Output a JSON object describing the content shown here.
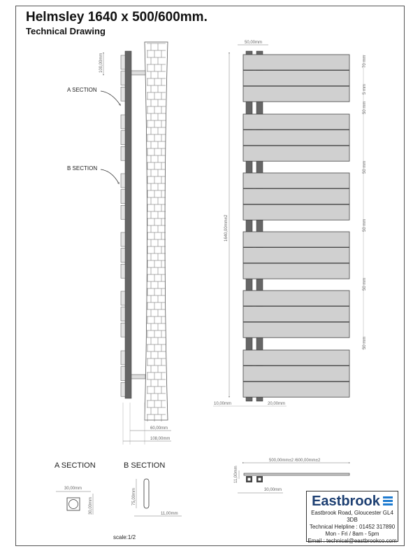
{
  "header": {
    "title": "Helmsley 1640 x 500/600mm.",
    "subtitle": "Technical Drawing"
  },
  "side_view": {
    "labels": {
      "a_section": "A SECTION",
      "b_section": "B SECTION",
      "top_offset": "100,00mm",
      "depth_inner": "60,00mm",
      "depth_outer": "108,00mm"
    }
  },
  "front_view": {
    "labels": {
      "column_span": "50,00mm",
      "height": "1640,00mm±2",
      "panel_height": "70 mm",
      "panel_gap": "5 mm",
      "group_gap_1": "50 mm",
      "group_gap_2": "50 mm",
      "group_gap_3": "50 mm",
      "group_gap_4": "50 mm",
      "group_gap_5": "50 mm",
      "group_gap_6": "50 mm",
      "left_offset": "10,00mm",
      "column_width": "20,00mm"
    },
    "panel_groups": 6,
    "panels_per_group": 3
  },
  "plan_view": {
    "labels": {
      "width": "500,00mm±2 /600,00mm±2",
      "thickness": "11,00mm",
      "column_width": "30,00mm"
    }
  },
  "sections": {
    "a_title": "A SECTION",
    "b_title": "B SECTION",
    "a_width": "30,00mm",
    "a_height": "30,00mm",
    "b_height": "75,00mm",
    "b_width": "11,00mm",
    "scale": "scale:1/2"
  },
  "company": {
    "brand": "Eastbrook",
    "address": "Eastbrook Road, Gloucester GL4 3DB",
    "helpline": "Technical Helpline : 01452 317890",
    "hours": "Mon - Fri / 8am - 5pm",
    "email": "Email : technical@eastbrookco.com",
    "brand_color": "#1d3f72",
    "mark_color": "#1e7bd0"
  },
  "colors": {
    "panel": "#d0d0d0",
    "column": "#666666",
    "outline": "#555555"
  }
}
